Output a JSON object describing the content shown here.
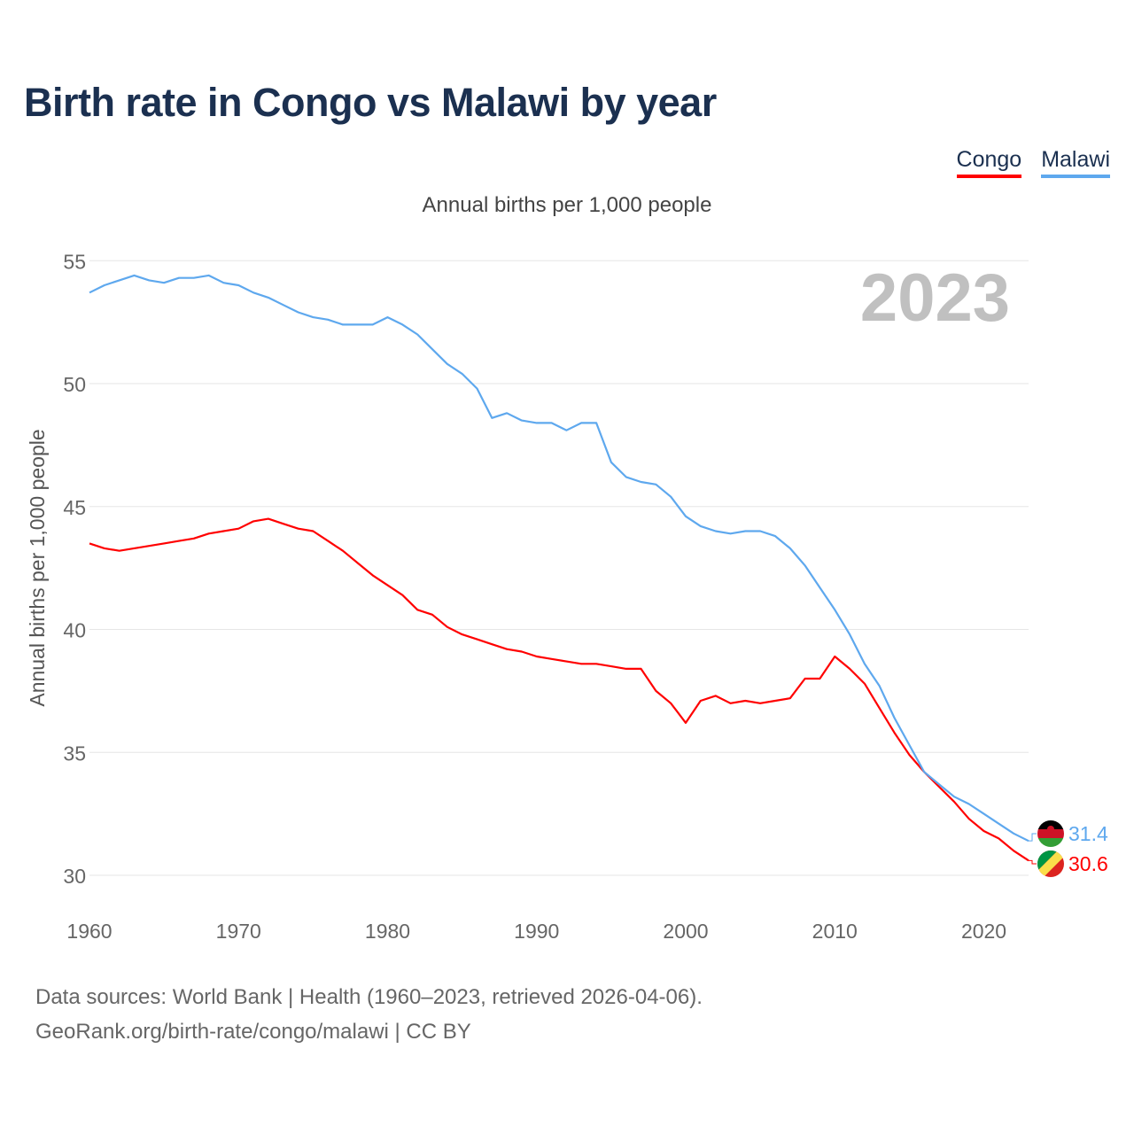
{
  "title": "Birth rate in Congo vs Malawi by year",
  "subtitle": "Annual births per 1,000 people",
  "year_watermark": "2023",
  "footer": {
    "line1": "Data sources: World Bank | Health (1960–2023, retrieved 2026-04-06).",
    "line2": "GeoRank.org/birth-rate/congo/malawi | CC BY"
  },
  "chart_data": {
    "type": "line",
    "title": "Birth rate in Congo vs Malawi by year",
    "xlabel": "",
    "ylabel": "Annual births per 1,000 people",
    "xlim": [
      1960,
      2023
    ],
    "ylim": [
      29.5,
      56
    ],
    "yticks": [
      30,
      35,
      40,
      45,
      50,
      55
    ],
    "xticks": [
      1960,
      1970,
      1980,
      1990,
      2000,
      2010,
      2020
    ],
    "grid": true,
    "legend_position": "top-right",
    "x": [
      1960,
      1961,
      1962,
      1963,
      1964,
      1965,
      1966,
      1967,
      1968,
      1969,
      1970,
      1971,
      1972,
      1973,
      1974,
      1975,
      1976,
      1977,
      1978,
      1979,
      1980,
      1981,
      1982,
      1983,
      1984,
      1985,
      1986,
      1987,
      1988,
      1989,
      1990,
      1991,
      1992,
      1993,
      1994,
      1995,
      1996,
      1997,
      1998,
      1999,
      2000,
      2001,
      2002,
      2003,
      2004,
      2005,
      2006,
      2007,
      2008,
      2009,
      2010,
      2011,
      2012,
      2013,
      2014,
      2015,
      2016,
      2017,
      2018,
      2019,
      2020,
      2021,
      2022,
      2023
    ],
    "series": [
      {
        "name": "Congo",
        "color": "#ff0000",
        "end_label": "30.6",
        "values": [
          43.5,
          43.3,
          43.2,
          43.3,
          43.4,
          43.5,
          43.6,
          43.7,
          43.9,
          44.0,
          44.1,
          44.4,
          44.5,
          44.3,
          44.1,
          44.0,
          43.6,
          43.2,
          42.7,
          42.2,
          41.8,
          41.4,
          40.8,
          40.6,
          40.1,
          39.8,
          39.6,
          39.4,
          39.2,
          39.1,
          38.9,
          38.8,
          38.7,
          38.6,
          38.6,
          38.5,
          38.4,
          38.4,
          37.5,
          37.0,
          36.2,
          37.1,
          37.3,
          37.0,
          37.1,
          37.0,
          37.1,
          37.2,
          38.0,
          38.0,
          38.9,
          38.4,
          37.8,
          36.8,
          35.8,
          34.9,
          34.2,
          33.6,
          33.0,
          32.3,
          31.8,
          31.5,
          31.0,
          30.6
        ]
      },
      {
        "name": "Malawi",
        "color": "#5ea8ee",
        "end_label": "31.4",
        "values": [
          53.7,
          54.0,
          54.2,
          54.4,
          54.2,
          54.1,
          54.3,
          54.3,
          54.4,
          54.1,
          54.0,
          53.7,
          53.5,
          53.2,
          52.9,
          52.7,
          52.6,
          52.4,
          52.4,
          52.4,
          52.7,
          52.4,
          52.0,
          51.4,
          50.8,
          50.4,
          49.8,
          48.6,
          48.8,
          48.5,
          48.4,
          48.4,
          48.1,
          48.4,
          48.4,
          46.8,
          46.2,
          46.0,
          45.9,
          45.4,
          44.6,
          44.2,
          44.0,
          43.9,
          44.0,
          44.0,
          43.8,
          43.3,
          42.6,
          41.7,
          40.8,
          39.8,
          38.6,
          37.7,
          36.4,
          35.3,
          34.2,
          33.7,
          33.2,
          32.9,
          32.5,
          32.1,
          31.7,
          31.4
        ]
      }
    ]
  }
}
